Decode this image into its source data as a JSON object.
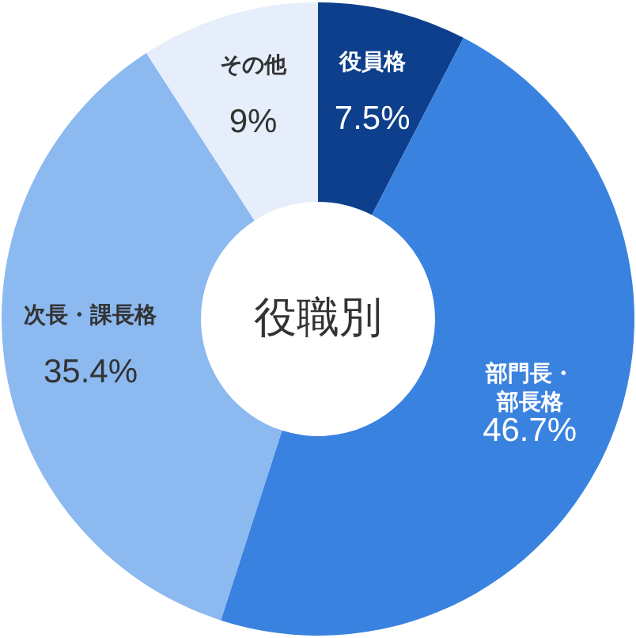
{
  "chart_data": {
    "type": "donut",
    "title": "役職別",
    "categories": [
      "役員格",
      "部門長・部長格",
      "次長・課長格",
      "その他"
    ],
    "values": [
      7.5,
      46.7,
      35.4,
      9
    ],
    "value_labels": [
      "7.5%",
      "46.7%",
      "35.4%",
      "9%"
    ],
    "colors": [
      "#0d3f8c",
      "#3a82df",
      "#8bb9f0",
      "#e5eefa"
    ]
  }
}
